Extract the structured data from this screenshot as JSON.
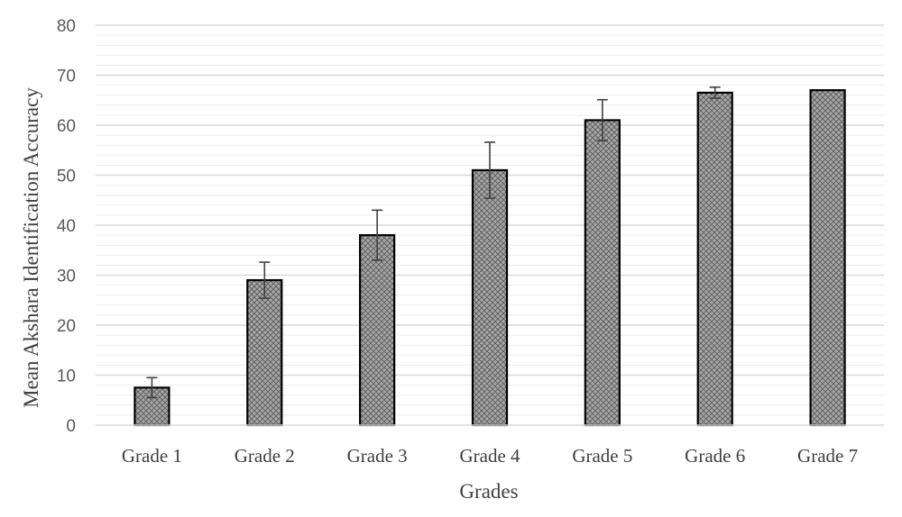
{
  "chart_data": {
    "type": "bar",
    "title": "",
    "xlabel": "Grades",
    "ylabel": "Mean Akshara Identification Accuracy",
    "categories": [
      "Grade 1",
      "Grade 2",
      "Grade 3",
      "Grade 4",
      "Grade 5",
      "Grade 6",
      "Grade 7"
    ],
    "values": [
      7.5,
      29,
      38,
      51,
      61,
      66.5,
      67
    ],
    "error": [
      2,
      3.6,
      5,
      5.6,
      4.1,
      1.1,
      0
    ],
    "ylim": [
      0,
      80
    ],
    "yticks": [
      "0",
      "10",
      "20",
      "30",
      "40",
      "50",
      "60",
      "70",
      "80"
    ],
    "grid": true,
    "legend": "none",
    "colors": {
      "bar_fill": "#a6a6a6",
      "bar_pattern": "#5a5a5a",
      "bar_edge": "#000000",
      "grid": "#d9d9d9",
      "error": "#404040"
    }
  }
}
